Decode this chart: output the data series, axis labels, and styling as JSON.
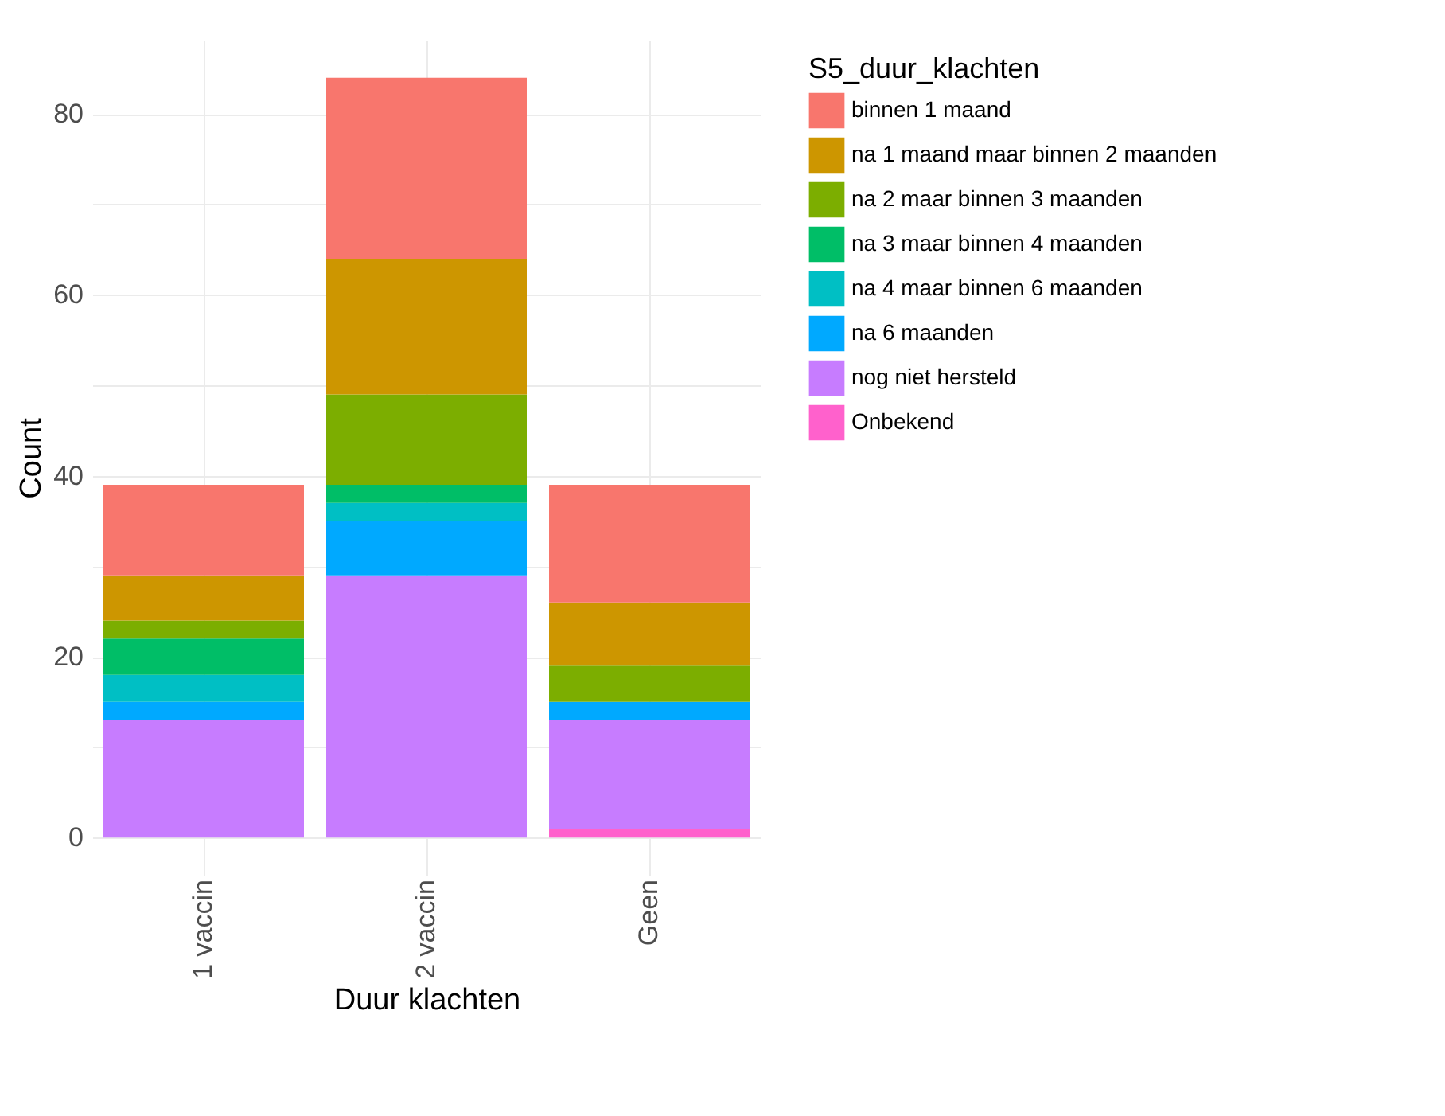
{
  "chart_data": {
    "type": "bar",
    "stacked": true,
    "xlabel": "Duur klachten",
    "ylabel": "Count",
    "legend_title": "S5_duur_klachten",
    "legend": "right",
    "grid": true,
    "categories": [
      "1 vaccin",
      "2 vaccin",
      "Geen"
    ],
    "ylim": [
      -4.2,
      88.2
    ],
    "yticks": [
      0,
      {
        "value": 10,
        "label": null
      },
      20,
      {
        "value": 30,
        "label": null
      },
      40,
      {
        "value": 50,
        "label": null
      },
      60,
      {
        "value": 70,
        "label": null
      },
      80
    ],
    "series": [
      {
        "name": "Onbekend",
        "color": "#ff61cc",
        "values": [
          null,
          null,
          1
        ]
      },
      {
        "name": "nog niet hersteld",
        "color": "#c77cff",
        "values": [
          13,
          29,
          12
        ]
      },
      {
        "name": "na 6 maanden",
        "color": "#00a9ff",
        "values": [
          2,
          6,
          2
        ]
      },
      {
        "name": "na 4 maar binnen 6 maanden",
        "color": "#00bfc4",
        "values": [
          3,
          2,
          null
        ]
      },
      {
        "name": "na 3 maar binnen 4 maanden",
        "color": "#00be67",
        "values": [
          4,
          2,
          null
        ]
      },
      {
        "name": "na 2 maar binnen 3 maanden",
        "color": "#7cae00",
        "values": [
          2,
          10,
          4
        ]
      },
      {
        "name": "na 1 maand maar binnen 2 maanden",
        "color": "#cd9600",
        "values": [
          5,
          15,
          7
        ]
      },
      {
        "name": "binnen 1 maand",
        "color": "#f8766d",
        "values": [
          10,
          20,
          13
        ]
      }
    ]
  }
}
